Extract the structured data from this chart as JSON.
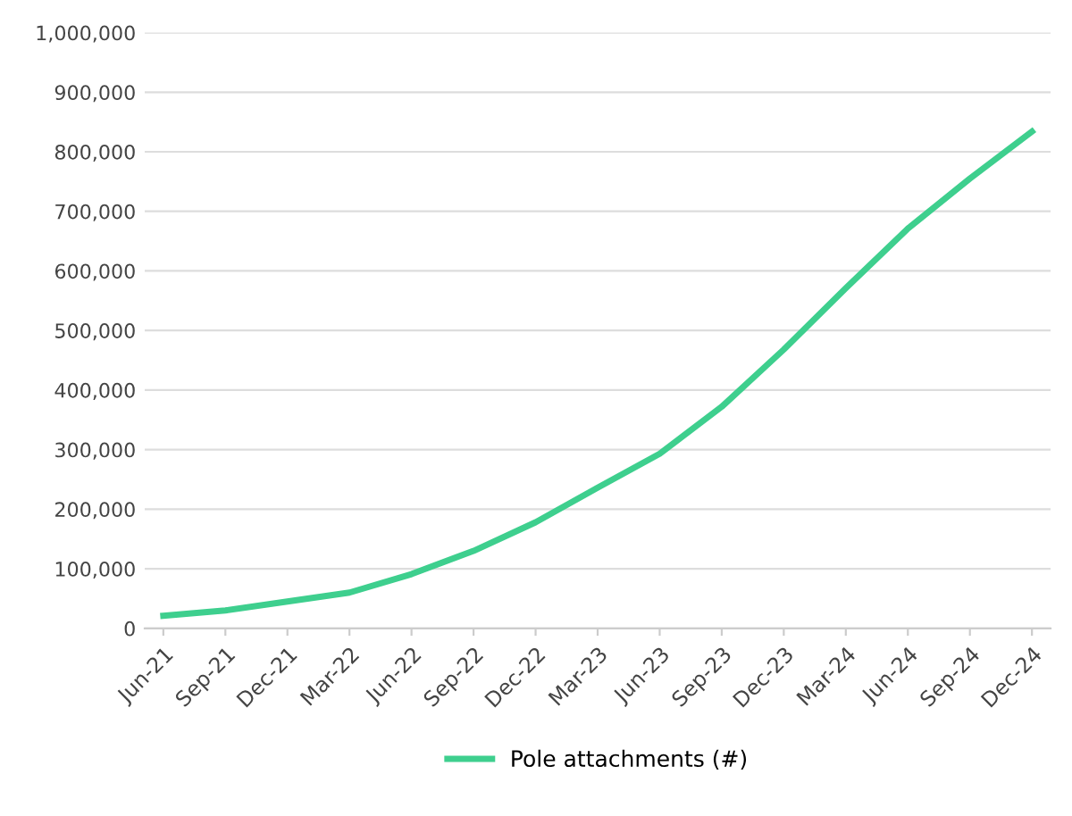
{
  "chart_data": {
    "type": "line",
    "categories": [
      "Jun-21",
      "Sep-21",
      "Dec-21",
      "Mar-22",
      "Jun-22",
      "Sep-22",
      "Dec-22",
      "Mar-23",
      "Jun-23",
      "Sep-23",
      "Dec-23",
      "Mar-24",
      "Jun-24",
      "Sep-24",
      "Dec-24"
    ],
    "series": [
      {
        "name": "Pole attachments (#)",
        "color": "#3ecf8e",
        "values": [
          21000,
          30000,
          45000,
          60000,
          91000,
          130000,
          178000,
          236000,
          293000,
          372000,
          468000,
          571000,
          671000,
          755000,
          834000
        ]
      }
    ],
    "ylim": [
      0,
      1000000
    ],
    "yticks": [
      {
        "value": 0,
        "label": "0"
      },
      {
        "value": 100000,
        "label": "100,000"
      },
      {
        "value": 200000,
        "label": "200,000"
      },
      {
        "value": 300000,
        "label": "300,000"
      },
      {
        "value": 400000,
        "label": "400,000"
      },
      {
        "value": 500000,
        "label": "500,000"
      },
      {
        "value": 600000,
        "label": "600,000"
      },
      {
        "value": 700000,
        "label": "700,000"
      },
      {
        "value": 800000,
        "label": "800,000"
      },
      {
        "value": 900000,
        "label": "900,000"
      },
      {
        "value": 1000000,
        "label": "1,000,000"
      }
    ],
    "grid": "y",
    "legend": "bottom",
    "marker": "none",
    "line_style": "solid"
  }
}
